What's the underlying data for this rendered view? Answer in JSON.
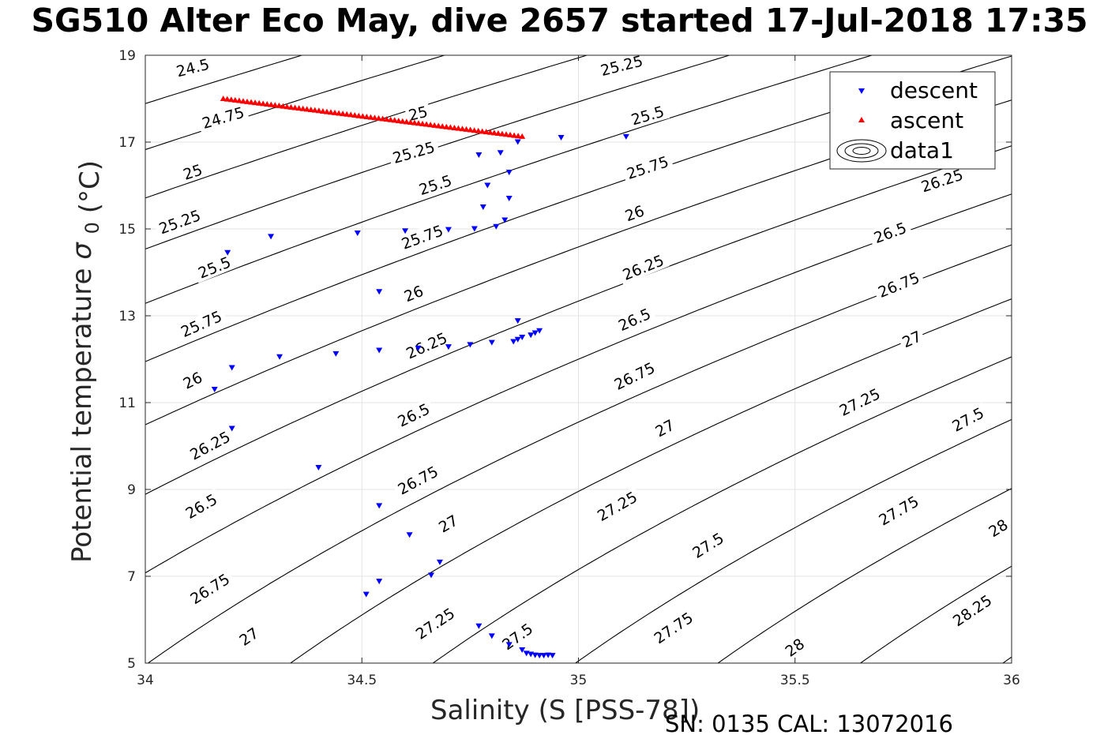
{
  "title": "SG510 Alter Eco May, dive 2657 started 17-Jul-2018 17:35",
  "footnote": "SN: 0135  CAL: 13072016",
  "chart_data": {
    "type": "scatter",
    "xlabel": "Salinity (S [PSS-78])",
    "ylabel": "Potential temperature",
    "ylabel_symbol": "σ",
    "ylabel_subscript": "0",
    "ylabel_unit": "(°C)",
    "xlim": [
      34,
      36
    ],
    "ylim": [
      5,
      19
    ],
    "xticks": [
      34,
      34.5,
      35,
      35.5,
      36
    ],
    "xtick_labels": [
      "34",
      "34.5",
      "35",
      "35.5",
      "36"
    ],
    "yticks": [
      5,
      7,
      9,
      11,
      13,
      15,
      17,
      19
    ],
    "ytick_labels": [
      "5",
      "7",
      "9",
      "11",
      "13",
      "15",
      "17",
      "19"
    ],
    "grid": true,
    "legend_position": "top-right",
    "series": [
      {
        "name": "descent",
        "marker": "triangle-down",
        "color": "#0000ff",
        "points": [
          [
            34.16,
            11.3
          ],
          [
            34.2,
            11.8
          ],
          [
            34.19,
            14.45
          ],
          [
            34.2,
            10.4
          ],
          [
            34.29,
            14.82
          ],
          [
            34.31,
            12.05
          ],
          [
            34.4,
            9.5
          ],
          [
            34.44,
            12.12
          ],
          [
            34.49,
            14.9
          ],
          [
            34.54,
            13.55
          ],
          [
            34.54,
            12.2
          ],
          [
            34.54,
            8.62
          ],
          [
            34.54,
            6.88
          ],
          [
            34.51,
            6.58
          ],
          [
            34.6,
            14.95
          ],
          [
            34.61,
            7.95
          ],
          [
            34.63,
            12.25
          ],
          [
            34.66,
            7.02
          ],
          [
            34.68,
            7.32
          ],
          [
            34.7,
            12.28
          ],
          [
            34.7,
            14.98
          ],
          [
            34.75,
            12.33
          ],
          [
            34.76,
            15.0
          ],
          [
            34.77,
            16.7
          ],
          [
            34.77,
            5.85
          ],
          [
            34.78,
            15.5
          ],
          [
            34.79,
            16.0
          ],
          [
            34.8,
            12.38
          ],
          [
            34.8,
            5.62
          ],
          [
            34.81,
            15.05
          ],
          [
            34.82,
            16.75
          ],
          [
            34.83,
            15.2
          ],
          [
            34.84,
            16.3
          ],
          [
            34.84,
            15.7
          ],
          [
            34.84,
            5.42
          ],
          [
            34.85,
            12.4
          ],
          [
            34.86,
            12.88
          ],
          [
            34.86,
            17.0
          ],
          [
            34.86,
            12.45
          ],
          [
            34.87,
            5.3
          ],
          [
            34.87,
            12.5
          ],
          [
            34.88,
            5.22
          ],
          [
            34.89,
            12.55
          ],
          [
            34.89,
            5.2
          ],
          [
            34.9,
            12.6
          ],
          [
            34.9,
            5.18
          ],
          [
            34.91,
            12.65
          ],
          [
            34.91,
            5.17
          ],
          [
            34.92,
            5.17
          ],
          [
            34.93,
            5.18
          ],
          [
            34.94,
            5.17
          ],
          [
            34.96,
            17.1
          ],
          [
            35.11,
            17.12
          ]
        ]
      },
      {
        "name": "ascent",
        "marker": "triangle-up",
        "color": "#ff0000",
        "line_from": [
          34.18,
          18.0
        ],
        "line_to": [
          34.87,
          17.13
        ],
        "count": 76
      }
    ],
    "contours": {
      "name": "data1",
      "color": "#000000",
      "levels": [
        24.5,
        24.75,
        25,
        25.25,
        25.5,
        25.75,
        26,
        26.25,
        26.5,
        26.75,
        27,
        27.25,
        27.5,
        27.75,
        28,
        28.25
      ],
      "labels": [
        {
          "text": "24.5",
          "x": 34.11,
          "y": 18.7,
          "angle": -14
        },
        {
          "text": "24.75",
          "x": 34.18,
          "y": 17.55,
          "angle": -16
        },
        {
          "text": "25",
          "x": 34.11,
          "y": 16.3,
          "angle": -18
        },
        {
          "text": "25.25",
          "x": 34.08,
          "y": 15.15,
          "angle": -20
        },
        {
          "text": "25.5",
          "x": 34.16,
          "y": 14.1,
          "angle": -22
        },
        {
          "text": "25.75",
          "x": 34.13,
          "y": 12.8,
          "angle": -24
        },
        {
          "text": "26",
          "x": 34.11,
          "y": 11.5,
          "angle": -26
        },
        {
          "text": "26.25",
          "x": 34.15,
          "y": 10.0,
          "angle": -28
        },
        {
          "text": "26.5",
          "x": 34.13,
          "y": 8.6,
          "angle": -30
        },
        {
          "text": "26.75",
          "x": 34.15,
          "y": 6.7,
          "angle": -32
        },
        {
          "text": "27",
          "x": 34.24,
          "y": 5.6,
          "angle": -34
        },
        {
          "text": "25",
          "x": 34.63,
          "y": 17.65,
          "angle": -14
        },
        {
          "text": "25.25",
          "x": 34.62,
          "y": 16.75,
          "angle": -16
        },
        {
          "text": "25.5",
          "x": 34.67,
          "y": 16.0,
          "angle": -18
        },
        {
          "text": "25.75",
          "x": 34.64,
          "y": 14.8,
          "angle": -20
        },
        {
          "text": "26",
          "x": 34.62,
          "y": 13.5,
          "angle": -22
        },
        {
          "text": "26.25",
          "x": 34.65,
          "y": 12.3,
          "angle": -24
        },
        {
          "text": "26.5",
          "x": 34.62,
          "y": 10.7,
          "angle": -26
        },
        {
          "text": "26.75",
          "x": 34.63,
          "y": 9.2,
          "angle": -28
        },
        {
          "text": "27",
          "x": 34.7,
          "y": 8.2,
          "angle": -30
        },
        {
          "text": "27.25",
          "x": 34.67,
          "y": 5.9,
          "angle": -34
        },
        {
          "text": "27.5",
          "x": 34.86,
          "y": 5.6,
          "angle": -36
        },
        {
          "text": "25.25",
          "x": 35.1,
          "y": 18.75,
          "angle": -14
        },
        {
          "text": "25.5",
          "x": 35.16,
          "y": 17.6,
          "angle": -16
        },
        {
          "text": "25.75",
          "x": 35.16,
          "y": 16.4,
          "angle": -18
        },
        {
          "text": "26",
          "x": 35.13,
          "y": 15.35,
          "angle": -20
        },
        {
          "text": "26.25",
          "x": 35.15,
          "y": 14.1,
          "angle": -22
        },
        {
          "text": "26.5",
          "x": 35.13,
          "y": 12.9,
          "angle": -24
        },
        {
          "text": "26.75",
          "x": 35.13,
          "y": 11.6,
          "angle": -26
        },
        {
          "text": "27",
          "x": 35.2,
          "y": 10.4,
          "angle": -28
        },
        {
          "text": "27.25",
          "x": 35.09,
          "y": 8.6,
          "angle": -30
        },
        {
          "text": "27.5",
          "x": 35.3,
          "y": 7.7,
          "angle": -32
        },
        {
          "text": "27.75",
          "x": 35.22,
          "y": 5.8,
          "angle": -34
        },
        {
          "text": "28",
          "x": 35.5,
          "y": 5.35,
          "angle": -36
        },
        {
          "text": "26.25",
          "x": 35.84,
          "y": 16.1,
          "angle": -18
        },
        {
          "text": "26.5",
          "x": 35.72,
          "y": 14.9,
          "angle": -20
        },
        {
          "text": "26.75",
          "x": 35.74,
          "y": 13.7,
          "angle": -22
        },
        {
          "text": "27",
          "x": 35.77,
          "y": 12.45,
          "angle": -24
        },
        {
          "text": "27.25",
          "x": 35.65,
          "y": 11.0,
          "angle": -26
        },
        {
          "text": "27.5",
          "x": 35.9,
          "y": 10.6,
          "angle": -28
        },
        {
          "text": "27.75",
          "x": 35.74,
          "y": 8.5,
          "angle": -30
        },
        {
          "text": "28",
          "x": 35.97,
          "y": 8.1,
          "angle": -32
        },
        {
          "text": "28.25",
          "x": 35.91,
          "y": 6.2,
          "angle": -34
        }
      ]
    }
  }
}
